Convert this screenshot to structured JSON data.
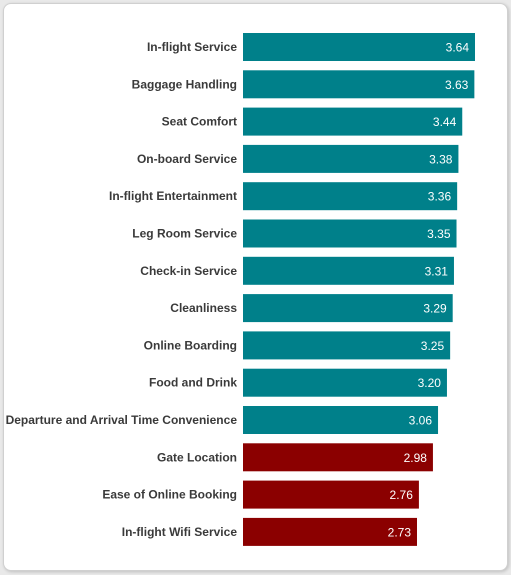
{
  "chart_data": {
    "type": "bar",
    "orientation": "horizontal",
    "title": "",
    "xlabel": "",
    "ylabel": "",
    "categories": [
      "In-flight Service",
      "Baggage Handling",
      "Seat Comfort",
      "On-board Service",
      "In-flight Entertainment",
      "Leg Room Service",
      "Check-in Service",
      "Cleanliness",
      "Online Boarding",
      "Food and Drink",
      "Departure and Arrival Time Convenience",
      "Gate Location",
      "Ease of Online Booking",
      "In-flight Wifi Service"
    ],
    "values": [
      3.64,
      3.63,
      3.44,
      3.38,
      3.36,
      3.35,
      3.31,
      3.29,
      3.25,
      3.2,
      3.06,
      2.98,
      2.76,
      2.73
    ],
    "value_labels": [
      "3.64",
      "3.63",
      "3.44",
      "3.38",
      "3.36",
      "3.35",
      "3.31",
      "3.29",
      "3.25",
      "3.20",
      "3.06",
      "2.98",
      "2.76",
      "2.73"
    ],
    "threshold": 3.0,
    "colors": {
      "above": "#00808a",
      "below": "#8b0000"
    },
    "xlim": [
      0,
      3.64
    ],
    "grid": false,
    "legend": "none"
  }
}
